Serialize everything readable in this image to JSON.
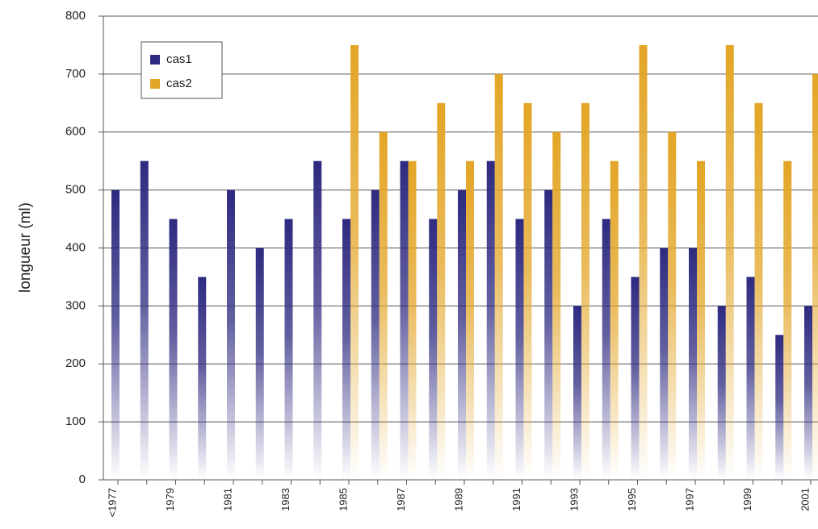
{
  "chart_data": {
    "type": "bar",
    "y_label": "longueur (ml)",
    "categories": [
      "<1977",
      null,
      "1979",
      null,
      "1981",
      null,
      "1983",
      null,
      "1985",
      null,
      "1987",
      null,
      "1989",
      null,
      "1991",
      null,
      "1993",
      null,
      "1995",
      null,
      "1997",
      null,
      "1999",
      null,
      "2001"
    ],
    "series": [
      {
        "name": "cas1",
        "color": "#2e2a80",
        "values": [
          500,
          550,
          450,
          350,
          500,
          400,
          450,
          550,
          450,
          500,
          550,
          450,
          500,
          550,
          450,
          500,
          300,
          450,
          350,
          400,
          400,
          300,
          350,
          250,
          300
        ]
      },
      {
        "name": "cas2",
        "color": "#e3a526",
        "values": [
          null,
          null,
          null,
          null,
          null,
          null,
          null,
          null,
          750,
          600,
          550,
          650,
          550,
          700,
          650,
          600,
          650,
          550,
          750,
          600,
          550,
          750,
          650,
          550,
          700
        ]
      }
    ],
    "ylim": [
      0,
      800
    ],
    "yticks": [
      0,
      100,
      200,
      300,
      400,
      500,
      600,
      700,
      800
    ],
    "grid": true
  }
}
